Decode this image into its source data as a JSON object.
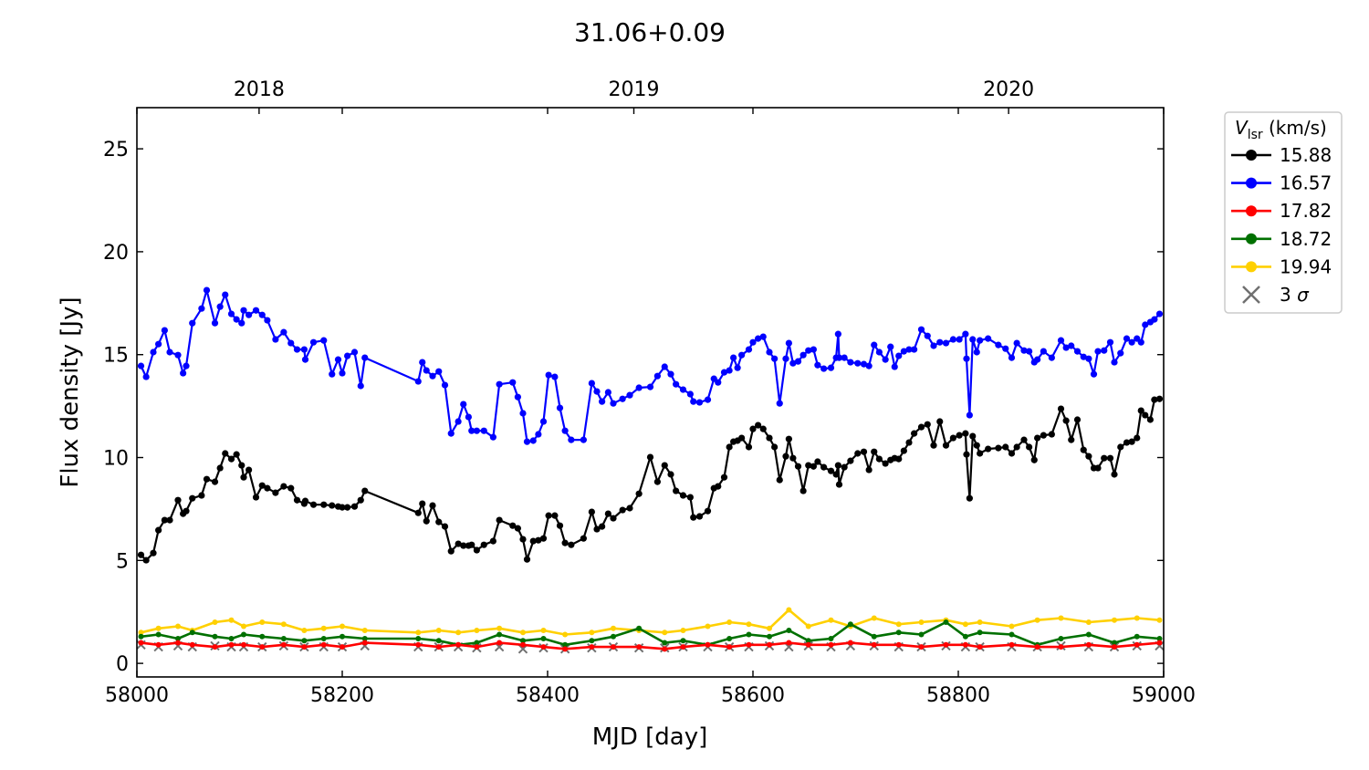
{
  "chart_data": {
    "type": "line",
    "title": "31.06+0.09",
    "xlabel": "MJD [day]",
    "ylabel": "Flux density [Jy]",
    "xlim": [
      58000,
      59000
    ],
    "ylim": [
      -0.66,
      27
    ],
    "xticks": [
      "58000",
      "58200",
      "58400",
      "58600",
      "58800",
      "59000"
    ],
    "yticks": [
      "0",
      "5",
      "10",
      "15",
      "20",
      "25"
    ],
    "top_axis": {
      "labels": [
        "2018",
        "2019",
        "2020"
      ],
      "mjd": [
        58119,
        58484,
        58849
      ]
    },
    "legend": {
      "title_main": "V",
      "title_sub": "lsr",
      "title_unit": " (km/s)",
      "placement": "outside-right"
    },
    "x": [
      58004,
      58009,
      58016,
      58021,
      58027,
      58032,
      58040,
      58045,
      58048,
      58054,
      58063,
      58068,
      58076,
      58081,
      58086,
      58092,
      58097,
      58102,
      58104,
      58109,
      58116,
      58122,
      58127,
      58135,
      58143,
      58150,
      58156,
      58163,
      58164,
      58172,
      58182,
      58190,
      58196,
      58200,
      58205,
      58212,
      58218,
      58222,
      58274,
      58278,
      58282,
      58288,
      58294,
      58300,
      58306,
      58313,
      58318,
      58323,
      58326,
      58331,
      58338,
      58347,
      58353,
      58366,
      58371,
      58376,
      58380,
      58386,
      58391,
      58396,
      58401,
      58407,
      58412,
      58417,
      58423,
      58435,
      58443,
      58448,
      58453,
      58459,
      58464,
      58473,
      58480,
      58489,
      58500,
      58507,
      58514,
      58520,
      58525,
      58532,
      58539,
      58542,
      58548,
      58556,
      58562,
      58566,
      58572,
      58577,
      58581,
      58585,
      58589,
      58596,
      58600,
      58605,
      58610,
      58616,
      58621,
      58626,
      58632,
      58635,
      58639,
      58644,
      58649,
      58654,
      58659,
      58663,
      58669,
      58676,
      58681,
      58683,
      58684,
      58689,
      58695,
      58702,
      58708,
      58713,
      58718,
      58723,
      58729,
      58734,
      58738,
      58742,
      58747,
      58752,
      58757,
      58764,
      58770,
      58776,
      58782,
      58788,
      58795,
      58801,
      58807,
      58808,
      58811,
      58814,
      58818,
      58821,
      58829,
      58839,
      58846,
      58852,
      58857,
      58864,
      58869,
      58874,
      58877,
      58883,
      58891,
      58900,
      58905,
      58910,
      58916,
      58922,
      58927,
      58932,
      58936,
      58942,
      58948,
      58952,
      58958,
      58964,
      58969,
      58974,
      58978,
      58982,
      58987,
      58991,
      58996
    ],
    "series": [
      {
        "name": "15.88",
        "color": "#000000",
        "values": [
          5.27,
          5.01,
          5.36,
          6.47,
          6.96,
          6.96,
          7.93,
          7.27,
          7.4,
          8.02,
          8.16,
          8.95,
          8.82,
          9.49,
          10.2,
          9.93,
          10.15,
          9.62,
          9.04,
          9.4,
          8.07,
          8.64,
          8.51,
          8.29,
          8.6,
          8.51,
          7.93,
          7.76,
          7.89,
          7.71,
          7.71,
          7.67,
          7.62,
          7.58,
          7.58,
          7.62,
          7.93,
          8.38,
          7.31,
          7.76,
          6.91,
          7.67,
          6.87,
          6.65,
          5.45,
          5.81,
          5.72,
          5.72,
          5.76,
          5.5,
          5.76,
          5.94,
          6.96,
          6.69,
          6.56,
          6.03,
          5.05,
          5.94,
          5.98,
          6.07,
          7.18,
          7.18,
          6.69,
          5.85,
          5.76,
          6.07,
          7.36,
          6.52,
          6.65,
          7.27,
          7.05,
          7.45,
          7.54,
          8.24,
          10.02,
          8.82,
          9.62,
          9.18,
          8.38,
          8.16,
          8.07,
          7.09,
          7.14,
          7.4,
          8.51,
          8.6,
          9.04,
          10.51,
          10.77,
          10.82,
          10.95,
          10.51,
          11.39,
          11.57,
          11.39,
          10.95,
          10.51,
          8.91,
          10.06,
          10.9,
          9.97,
          9.57,
          8.38,
          9.62,
          9.57,
          9.8,
          9.53,
          9.35,
          9.18,
          9.62,
          8.69,
          9.53,
          9.84,
          10.2,
          10.28,
          9.4,
          10.28,
          9.93,
          9.71,
          9.88,
          9.97,
          9.93,
          10.33,
          10.73,
          11.17,
          11.48,
          11.61,
          10.59,
          11.75,
          10.59,
          10.95,
          11.08,
          11.17,
          10.15,
          8.02,
          11.04,
          10.59,
          10.2,
          10.42,
          10.46,
          10.51,
          10.2,
          10.51,
          10.86,
          10.51,
          9.88,
          10.95,
          11.08,
          11.13,
          12.37,
          11.79,
          10.86,
          11.84,
          10.37,
          10.06,
          9.49,
          9.49,
          9.97,
          9.97,
          9.18,
          10.51,
          10.73,
          10.77,
          10.95,
          12.28,
          12.06,
          11.84,
          12.81,
          12.85
        ]
      },
      {
        "name": "16.57",
        "color": "#0000ff",
        "values": [
          14.45,
          13.92,
          15.12,
          15.51,
          16.18,
          15.12,
          14.98,
          14.1,
          14.45,
          16.53,
          17.24,
          18.13,
          16.53,
          17.33,
          17.91,
          16.98,
          16.71,
          16.53,
          17.15,
          16.93,
          17.15,
          16.93,
          16.67,
          15.74,
          16.09,
          15.56,
          15.25,
          15.25,
          14.76,
          15.6,
          15.69,
          14.05,
          14.76,
          14.1,
          14.94,
          15.12,
          13.48,
          14.85,
          13.7,
          14.63,
          14.23,
          13.96,
          14.18,
          13.52,
          11.17,
          11.75,
          12.59,
          11.97,
          11.3,
          11.3,
          11.3,
          10.99,
          13.56,
          13.65,
          12.94,
          12.15,
          10.77,
          10.82,
          11.13,
          11.75,
          14.01,
          13.92,
          12.41,
          11.3,
          10.86,
          10.86,
          13.61,
          13.21,
          12.72,
          13.17,
          12.63,
          12.85,
          13.03,
          13.39,
          13.43,
          13.96,
          14.41,
          14.05,
          13.56,
          13.3,
          13.08,
          12.72,
          12.68,
          12.81,
          13.83,
          13.65,
          14.14,
          14.23,
          14.85,
          14.36,
          14.98,
          15.25,
          15.6,
          15.78,
          15.87,
          15.12,
          14.8,
          12.63,
          14.8,
          15.56,
          14.58,
          14.67,
          14.98,
          15.2,
          15.25,
          14.49,
          14.32,
          14.36,
          14.85,
          16.0,
          14.85,
          14.85,
          14.63,
          14.58,
          14.54,
          14.45,
          15.47,
          15.12,
          14.76,
          15.38,
          14.41,
          14.94,
          15.16,
          15.25,
          15.25,
          16.22,
          15.91,
          15.43,
          15.6,
          15.56,
          15.74,
          15.74,
          16.0,
          14.8,
          12.06,
          15.74,
          15.12,
          15.69,
          15.78,
          15.47,
          15.29,
          14.85,
          15.56,
          15.2,
          15.16,
          14.63,
          14.76,
          15.16,
          14.85,
          15.69,
          15.34,
          15.43,
          15.16,
          14.89,
          14.8,
          14.05,
          15.16,
          15.2,
          15.6,
          14.63,
          15.07,
          15.78,
          15.6,
          15.78,
          15.6,
          16.45,
          16.58,
          16.71,
          16.98
        ]
      }
    ],
    "minor_x": [
      58004,
      58021,
      58040,
      58054,
      58076,
      58092,
      58104,
      58122,
      58143,
      58163,
      58182,
      58200,
      58222,
      58274,
      58294,
      58313,
      58331,
      58353,
      58376,
      58396,
      58417,
      58443,
      58464,
      58489,
      58514,
      58532,
      58556,
      58577,
      58596,
      58616,
      58635,
      58654,
      58676,
      58695,
      58718,
      58742,
      58764,
      58788,
      58807,
      58821,
      58852,
      58877,
      58900,
      58927,
      58952,
      58974,
      58996
    ],
    "minor_series": [
      {
        "name": "17.82",
        "color": "#ff0000",
        "values": [
          1.0,
          0.9,
          1.0,
          0.9,
          0.8,
          0.9,
          0.9,
          0.8,
          0.9,
          0.8,
          0.9,
          0.8,
          1.0,
          0.9,
          0.8,
          0.9,
          0.8,
          1.0,
          0.9,
          0.8,
          0.7,
          0.8,
          0.8,
          0.8,
          0.7,
          0.8,
          0.9,
          0.8,
          0.9,
          0.9,
          1.0,
          0.9,
          0.9,
          1.0,
          0.9,
          0.9,
          0.8,
          0.9,
          0.9,
          0.8,
          0.9,
          0.8,
          0.8,
          0.9,
          0.8,
          0.9,
          1.0
        ]
      },
      {
        "name": "18.72",
        "color": "#007000",
        "values": [
          1.3,
          1.4,
          1.2,
          1.5,
          1.3,
          1.2,
          1.4,
          1.3,
          1.2,
          1.1,
          1.2,
          1.3,
          1.2,
          1.2,
          1.1,
          0.9,
          1.0,
          1.4,
          1.1,
          1.2,
          0.9,
          1.1,
          1.3,
          1.7,
          1.0,
          1.1,
          0.9,
          1.2,
          1.4,
          1.3,
          1.6,
          1.1,
          1.2,
          1.9,
          1.3,
          1.5,
          1.4,
          2.0,
          1.3,
          1.5,
          1.4,
          0.9,
          1.2,
          1.4,
          1.0,
          1.3,
          1.2
        ]
      },
      {
        "name": "19.94",
        "color": "#ffd000",
        "values": [
          1.5,
          1.7,
          1.8,
          1.6,
          2.0,
          2.1,
          1.8,
          2.0,
          1.9,
          1.6,
          1.7,
          1.8,
          1.6,
          1.5,
          1.6,
          1.5,
          1.6,
          1.7,
          1.5,
          1.6,
          1.4,
          1.5,
          1.7,
          1.6,
          1.5,
          1.6,
          1.8,
          2.0,
          1.9,
          1.7,
          2.6,
          1.8,
          2.1,
          1.8,
          2.2,
          1.9,
          2.0,
          2.1,
          1.9,
          2.0,
          1.8,
          2.1,
          2.2,
          2.0,
          2.1,
          2.2,
          2.1
        ]
      }
    ],
    "sigma3": {
      "name": "3 σ",
      "label_num": "3 ",
      "label_sym": "σ",
      "color": "#707070",
      "values": [
        0.9,
        0.8,
        0.85,
        0.8,
        0.85,
        0.8,
        0.8,
        0.8,
        0.85,
        0.8,
        0.8,
        0.8,
        0.85,
        0.8,
        0.8,
        0.8,
        0.75,
        0.8,
        0.7,
        0.75,
        0.7,
        0.75,
        0.8,
        0.75,
        0.75,
        0.8,
        0.8,
        0.8,
        0.8,
        0.85,
        0.8,
        0.85,
        0.8,
        0.85,
        0.85,
        0.8,
        0.8,
        0.85,
        0.8,
        0.8,
        0.8,
        0.8,
        0.85,
        0.8,
        0.8,
        0.85,
        0.85
      ]
    }
  }
}
